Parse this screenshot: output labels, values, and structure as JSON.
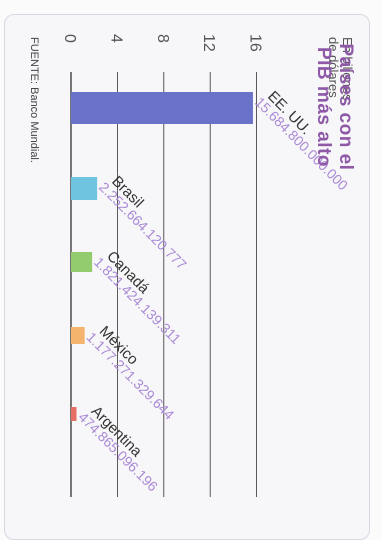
{
  "chart_data": {
    "type": "bar",
    "title": "Países con el PIB más alto",
    "unit_label": [
      "En billones",
      "de dólares"
    ],
    "source": "FUENTE: Banco Mundial.",
    "categories": [
      "EE. UU.",
      "Brasil",
      "Canadá",
      "México",
      "Argentina"
    ],
    "value_labels": [
      "15.684.800.000.000",
      "2.252.664.120.777",
      "1.821.424.139.311",
      "1.177.271.329.644",
      "474.865.096.196"
    ],
    "values": [
      15.6848,
      2.252664120777,
      1.821424139311,
      1.177271329644,
      0.474865096196
    ],
    "ticks": [
      "0",
      "4",
      "8",
      "12",
      "16"
    ],
    "tick_values": [
      0,
      4,
      8,
      12,
      16
    ],
    "ylim": [
      0,
      16
    ],
    "colors": [
      "#6a73c9",
      "#6fc5e0",
      "#93cb6f",
      "#f5b46d",
      "#e86e68"
    ],
    "label_color": "#a98ad6",
    "grid": true
  }
}
